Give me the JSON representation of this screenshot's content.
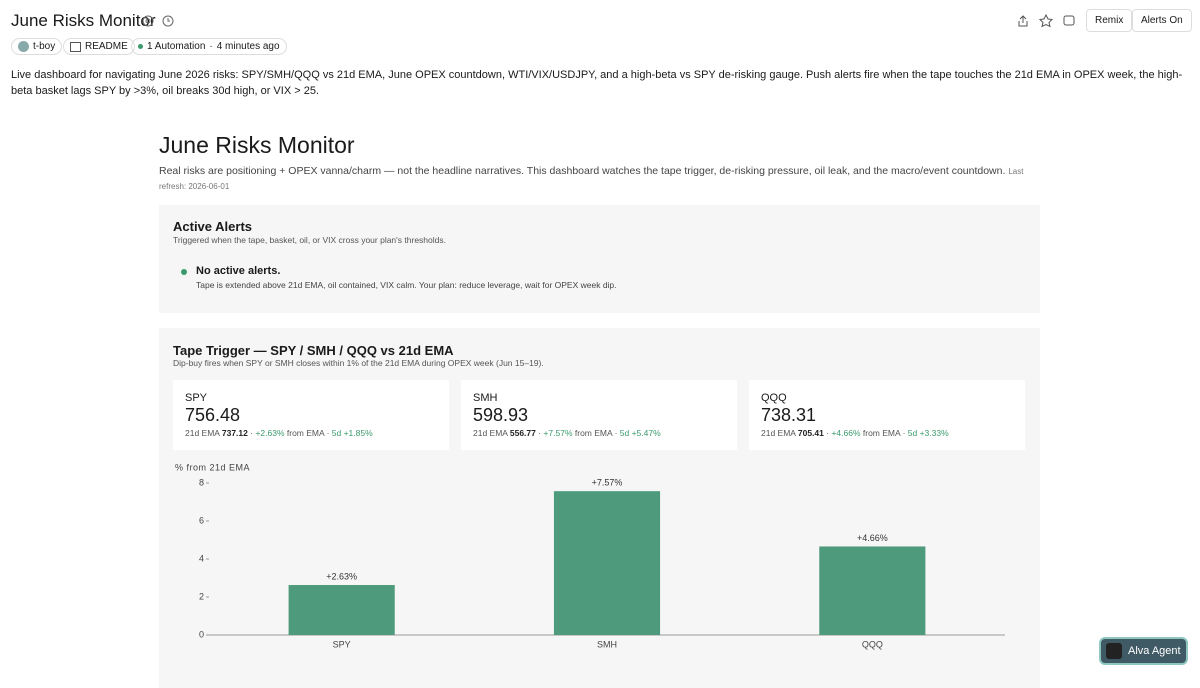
{
  "header": {
    "title": "June Risks Monitor",
    "author": "t-boy",
    "readme": "README",
    "automation": "1 Automation",
    "updated": "4 minutes ago",
    "remix": "Remix",
    "alerts_on": "Alerts On"
  },
  "description": "Live dashboard for navigating June 2026 risks: SPY/SMH/QQQ vs 21d EMA, June OPEX countdown, WTI/VIX/USDJPY, and a high-beta vs SPY de-risking gauge. Push alerts fire when the tape touches the 21d EMA in OPEX week, the high-beta basket lags SPY by >3%, oil breaks 30d high, or VIX > 25.",
  "dashboard": {
    "title": "June Risks Monitor",
    "subtitle": "Real risks are positioning + OPEX vanna/charm — not the headline narratives. This dashboard watches the tape trigger, de-risking pressure, oil leak, and the macro/event countdown.",
    "refresh": "Last refresh: 2026-06-01",
    "alerts": {
      "title": "Active Alerts",
      "subtitle": "Triggered when the tape, basket, oil, or VIX cross your plan's thresholds.",
      "status": "No active alerts.",
      "detail": "Tape is extended above 21d EMA, oil contained, VIX calm. Your plan: reduce leverage, wait for OPEX week dip."
    },
    "tape": {
      "title": "Tape Trigger — SPY / SMH / QQQ vs 21d EMA",
      "subtitle": "Dip-buy fires when SPY or SMH closes within 1% of the 21d EMA during OPEX week (Jun 15–19).",
      "cards": [
        {
          "ticker": "SPY",
          "price": 756.48,
          "ema_label": "21d EMA",
          "ema": 737.12,
          "from_ema": "+2.63%",
          "from_label": "from EMA",
          "five_d": "5d +1.85%"
        },
        {
          "ticker": "SMH",
          "price": 598.93,
          "ema_label": "21d EMA",
          "ema": 556.77,
          "from_ema": "+7.57%",
          "from_label": "from EMA",
          "five_d": "5d +5.47%"
        },
        {
          "ticker": "QQQ",
          "price": 738.31,
          "ema_label": "21d EMA",
          "ema": 705.41,
          "from_ema": "+4.66%",
          "from_label": "from EMA",
          "five_d": "5d +3.33%"
        }
      ]
    }
  },
  "agent": "Alva Agent",
  "chart_data": {
    "type": "bar",
    "y_label": "% from 21d EMA",
    "categories": [
      "SPY",
      "SMH",
      "QQQ"
    ],
    "values": [
      2.63,
      7.57,
      4.66
    ],
    "value_labels": [
      "+2.63%",
      "+7.57%",
      "+4.66%"
    ],
    "color": "#4e9a7c",
    "ylim": [
      0,
      8
    ],
    "yticks": [
      0,
      2,
      4,
      6,
      8
    ]
  }
}
